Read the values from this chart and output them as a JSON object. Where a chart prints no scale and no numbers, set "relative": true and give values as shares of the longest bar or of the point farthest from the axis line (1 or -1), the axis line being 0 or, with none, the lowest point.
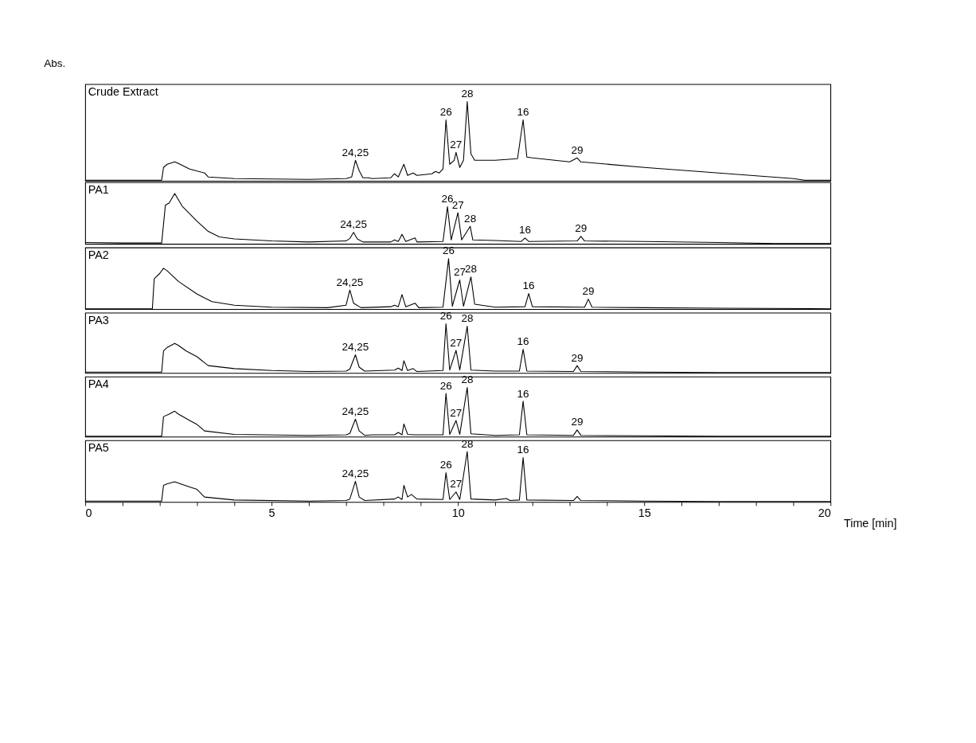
{
  "chart_data": [
    {
      "type": "line",
      "title": "Crude Extract",
      "ylabel": "Abs.",
      "relative": true,
      "color": "#000000",
      "xlim": [
        0,
        20
      ],
      "tick_labels": false,
      "x": [
        0,
        2.05,
        2.1,
        2.2,
        2.4,
        2.5,
        2.8,
        3.2,
        3.3,
        4,
        6,
        7.0,
        7.15,
        7.25,
        7.35,
        7.45,
        7.6,
        7.7,
        8.2,
        8.3,
        8.4,
        8.55,
        8.65,
        8.8,
        8.9,
        9.3,
        9.4,
        9.5,
        9.6,
        9.68,
        9.78,
        9.9,
        9.95,
        10.05,
        10.15,
        10.25,
        10.35,
        10.45,
        11,
        11.6,
        11.75,
        11.85,
        12,
        13,
        13.2,
        13.3,
        15,
        17,
        19,
        19.3,
        20
      ],
      "values": [
        0.01,
        0.01,
        0.17,
        0.21,
        0.24,
        0.22,
        0.15,
        0.1,
        0.05,
        0.03,
        0.02,
        0.03,
        0.05,
        0.26,
        0.13,
        0.04,
        0.04,
        0.03,
        0.04,
        0.09,
        0.05,
        0.21,
        0.07,
        0.1,
        0.07,
        0.09,
        0.12,
        0.1,
        0.15,
        0.77,
        0.21,
        0.26,
        0.36,
        0.17,
        0.26,
        1,
        0.34,
        0.26,
        0.26,
        0.28,
        0.77,
        0.3,
        0.29,
        0.24,
        0.29,
        0.24,
        0.17,
        0.1,
        0.03,
        0.01,
        0.01
      ],
      "annotations": [
        {
          "text": "24,25",
          "x": 7.25,
          "y": 0.26
        },
        {
          "text": "26",
          "x": 9.68,
          "y": 0.77
        },
        {
          "text": "27",
          "x": 9.95,
          "y": 0.36
        },
        {
          "text": "28",
          "x": 10.25,
          "y": 1
        },
        {
          "text": "16",
          "x": 11.75,
          "y": 0.77
        },
        {
          "text": "29",
          "x": 13.2,
          "y": 0.29
        }
      ]
    },
    {
      "type": "line",
      "title": "PA1",
      "relative": true,
      "color": "#000000",
      "xlim": [
        0,
        20
      ],
      "tick_labels": false,
      "x": [
        0,
        1.0,
        2.05,
        2.15,
        2.25,
        2.4,
        2.6,
        3,
        3.3,
        3.6,
        4,
        5,
        6,
        7,
        7.1,
        7.2,
        7.3,
        7.45,
        8.2,
        8.3,
        8.4,
        8.5,
        8.6,
        8.85,
        8.9,
        9.6,
        9.72,
        9.82,
        10.0,
        10.1,
        10.33,
        10.4,
        11,
        11.7,
        11.8,
        11.9,
        13.2,
        13.3,
        13.4,
        15,
        17,
        18.5,
        20
      ],
      "values": [
        0.03,
        0.02,
        0.02,
        0.77,
        0.81,
        1,
        0.75,
        0.45,
        0.25,
        0.14,
        0.1,
        0.06,
        0.04,
        0.06,
        0.11,
        0.23,
        0.1,
        0.04,
        0.04,
        0.08,
        0.05,
        0.19,
        0.05,
        0.12,
        0.04,
        0.05,
        0.74,
        0.08,
        0.62,
        0.08,
        0.35,
        0.08,
        0.07,
        0.05,
        0.12,
        0.05,
        0.06,
        0.15,
        0.06,
        0.05,
        0.03,
        0.01,
        0.01
      ],
      "annotations": [
        {
          "text": "24,25",
          "x": 7.2,
          "y": 0.23
        },
        {
          "text": "26",
          "x": 9.72,
          "y": 0.74
        },
        {
          "text": "27",
          "x": 10.0,
          "y": 0.62
        },
        {
          "text": "28",
          "x": 10.33,
          "y": 0.35
        },
        {
          "text": "16",
          "x": 11.8,
          "y": 0.12
        },
        {
          "text": "29",
          "x": 13.3,
          "y": 0.15
        }
      ]
    },
    {
      "type": "line",
      "title": "PA2",
      "relative": true,
      "color": "#000000",
      "xlim": [
        0,
        20
      ],
      "tick_labels": false,
      "x": [
        0,
        1.8,
        1.85,
        2.0,
        2.1,
        2.2,
        2.5,
        3,
        3.4,
        4,
        5,
        6.5,
        7.0,
        7.1,
        7.2,
        7.4,
        8.2,
        8.3,
        8.4,
        8.5,
        8.6,
        8.85,
        8.95,
        9.6,
        9.75,
        9.85,
        10.05,
        10.15,
        10.35,
        10.45,
        11,
        11.8,
        11.9,
        12,
        13.4,
        13.5,
        13.6,
        15,
        17,
        20
      ],
      "values": [
        0.01,
        0.01,
        0.6,
        0.71,
        0.81,
        0.76,
        0.55,
        0.3,
        0.15,
        0.08,
        0.04,
        0.03,
        0.08,
        0.38,
        0.12,
        0.03,
        0.05,
        0.08,
        0.05,
        0.29,
        0.05,
        0.12,
        0.03,
        0.04,
        1,
        0.06,
        0.58,
        0.06,
        0.64,
        0.1,
        0.04,
        0.05,
        0.31,
        0.05,
        0.04,
        0.2,
        0.04,
        0.03,
        0.02,
        0.01
      ],
      "annotations": [
        {
          "text": "24,25",
          "x": 7.1,
          "y": 0.38
        },
        {
          "text": "26",
          "x": 9.75,
          "y": 1
        },
        {
          "text": "27",
          "x": 10.05,
          "y": 0.58
        },
        {
          "text": "28",
          "x": 10.35,
          "y": 0.64
        },
        {
          "text": "16",
          "x": 11.9,
          "y": 0.31
        },
        {
          "text": "29",
          "x": 13.5,
          "y": 0.2
        }
      ]
    },
    {
      "type": "line",
      "title": "PA3",
      "relative": true,
      "color": "#000000",
      "xlim": [
        0,
        20
      ],
      "tick_labels": false,
      "x": [
        0,
        2.05,
        2.1,
        2.2,
        2.4,
        2.5,
        2.7,
        3,
        3.3,
        4,
        5,
        6,
        7.0,
        7.1,
        7.25,
        7.35,
        7.5,
        8.3,
        8.4,
        8.5,
        8.55,
        8.65,
        8.8,
        8.9,
        9.6,
        9.68,
        9.78,
        9.95,
        10.05,
        10.25,
        10.35,
        11,
        11.65,
        11.75,
        11.85,
        13.1,
        13.2,
        13.3,
        15,
        17,
        20
      ],
      "values": [
        0.02,
        0.02,
        0.45,
        0.52,
        0.6,
        0.56,
        0.45,
        0.33,
        0.15,
        0.09,
        0.05,
        0.03,
        0.04,
        0.08,
        0.37,
        0.12,
        0.04,
        0.06,
        0.1,
        0.05,
        0.25,
        0.05,
        0.09,
        0.03,
        0.05,
        1,
        0.06,
        0.46,
        0.06,
        0.95,
        0.06,
        0.04,
        0.04,
        0.48,
        0.04,
        0.03,
        0.15,
        0.03,
        0.02,
        0.01,
        0.01
      ],
      "annotations": [
        {
          "text": "24,25",
          "x": 7.25,
          "y": 0.37
        },
        {
          "text": "26",
          "x": 9.68,
          "y": 1
        },
        {
          "text": "27",
          "x": 9.95,
          "y": 0.46
        },
        {
          "text": "28",
          "x": 10.25,
          "y": 0.95
        },
        {
          "text": "16",
          "x": 11.75,
          "y": 0.48
        },
        {
          "text": "29",
          "x": 13.2,
          "y": 0.15
        }
      ]
    },
    {
      "type": "line",
      "title": "PA4",
      "relative": true,
      "color": "#000000",
      "xlim": [
        0,
        20
      ],
      "tick_labels": false,
      "x": [
        0,
        2.05,
        2.1,
        2.25,
        2.4,
        2.5,
        2.8,
        3.0,
        3.2,
        4,
        6,
        7.0,
        7.1,
        7.25,
        7.35,
        7.5,
        7.7,
        8.3,
        8.4,
        8.5,
        8.55,
        8.65,
        8.85,
        9.6,
        9.68,
        9.78,
        9.95,
        10.05,
        10.25,
        10.35,
        11,
        11.65,
        11.75,
        11.85,
        13.1,
        13.2,
        13.3,
        15,
        17,
        19.3,
        20
      ],
      "values": [
        0.01,
        0.01,
        0.41,
        0.46,
        0.52,
        0.46,
        0.33,
        0.25,
        0.12,
        0.05,
        0.03,
        0.04,
        0.07,
        0.36,
        0.12,
        0.03,
        0.04,
        0.04,
        0.09,
        0.04,
        0.26,
        0.05,
        0.04,
        0.04,
        0.88,
        0.05,
        0.33,
        0.05,
        1,
        0.06,
        0.03,
        0.04,
        0.72,
        0.04,
        0.03,
        0.14,
        0.03,
        0.02,
        0.01,
        0.01,
        0.01
      ],
      "annotations": [
        {
          "text": "24,25",
          "x": 7.25,
          "y": 0.36
        },
        {
          "text": "26",
          "x": 9.68,
          "y": 0.88
        },
        {
          "text": "27",
          "x": 9.95,
          "y": 0.33
        },
        {
          "text": "28",
          "x": 10.25,
          "y": 1
        },
        {
          "text": "16",
          "x": 11.75,
          "y": 0.72
        },
        {
          "text": "29",
          "x": 13.2,
          "y": 0.14
        }
      ]
    },
    {
      "type": "line",
      "title": "PA5",
      "xlabel": "Time [min]",
      "relative": true,
      "color": "#000000",
      "xlim": [
        0,
        20
      ],
      "tick_labels": "x",
      "xticks": [
        0,
        {
          "value": 1,
          "label": null
        },
        {
          "value": 2,
          "label": null
        },
        {
          "value": 3,
          "label": null
        },
        {
          "value": 4,
          "label": null
        },
        5,
        {
          "value": 6,
          "label": null
        },
        {
          "value": 7,
          "label": null
        },
        {
          "value": 8,
          "label": null
        },
        {
          "value": 9,
          "label": null
        },
        10,
        {
          "value": 11,
          "label": null
        },
        {
          "value": 12,
          "label": null
        },
        {
          "value": 13,
          "label": null
        },
        {
          "value": 14,
          "label": null
        },
        15,
        {
          "value": 16,
          "label": null
        },
        {
          "value": 17,
          "label": null
        },
        {
          "value": 18,
          "label": null
        },
        {
          "value": 19,
          "label": null
        },
        20
      ],
      "x": [
        0,
        2.05,
        2.1,
        2.2,
        2.4,
        2.6,
        2.8,
        3.0,
        3.2,
        4,
        6,
        7.0,
        7.1,
        7.25,
        7.35,
        7.5,
        8.3,
        8.4,
        8.5,
        8.55,
        8.65,
        8.75,
        8.9,
        9.6,
        9.68,
        9.78,
        9.95,
        10.05,
        10.25,
        10.35,
        11,
        11.3,
        11.4,
        11.65,
        11.75,
        11.85,
        13.1,
        13.2,
        13.3,
        15,
        17,
        19.3,
        20
      ],
      "values": [
        0.02,
        0.02,
        0.33,
        0.36,
        0.4,
        0.35,
        0.3,
        0.25,
        0.1,
        0.04,
        0.02,
        0.03,
        0.06,
        0.41,
        0.1,
        0.03,
        0.06,
        0.1,
        0.05,
        0.33,
        0.1,
        0.15,
        0.06,
        0.05,
        0.58,
        0.05,
        0.2,
        0.05,
        1,
        0.06,
        0.04,
        0.07,
        0.03,
        0.04,
        0.88,
        0.04,
        0.03,
        0.11,
        0.03,
        0.02,
        0.01,
        0.01,
        0.01
      ],
      "annotations": [
        {
          "text": "24,25",
          "x": 7.25,
          "y": 0.41
        },
        {
          "text": "26",
          "x": 9.68,
          "y": 0.58
        },
        {
          "text": "27",
          "x": 9.95,
          "y": 0.2
        },
        {
          "text": "28",
          "x": 10.25,
          "y": 1
        },
        {
          "text": "16",
          "x": 11.75,
          "y": 0.88
        }
      ]
    }
  ]
}
